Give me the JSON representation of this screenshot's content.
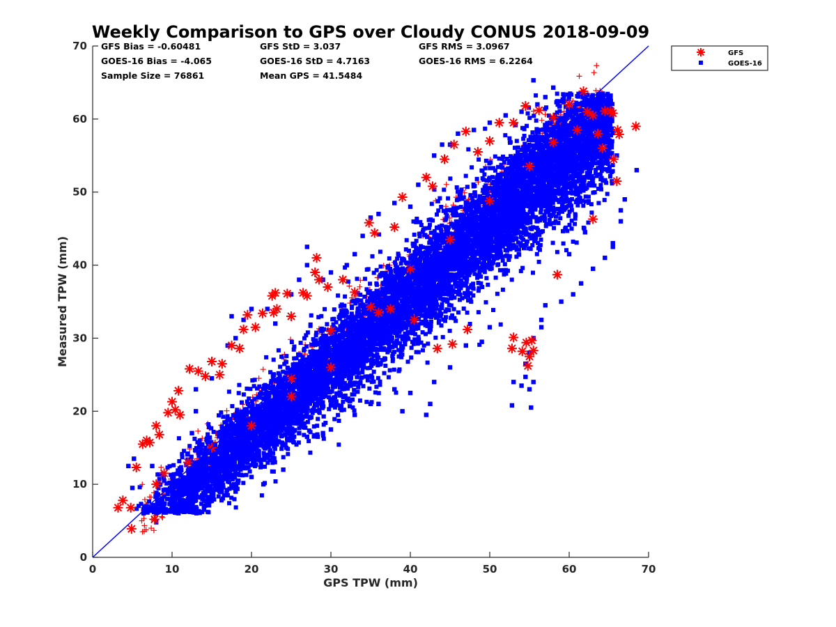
{
  "chart_data": {
    "type": "scatter",
    "title": "Weekly Comparison to GPS over Cloudy CONUS 2018-09-09",
    "xlabel": "GPS TPW (mm)",
    "ylabel": "Measured TPW (mm)",
    "xlim": [
      0,
      70
    ],
    "ylim": [
      0,
      70
    ],
    "xticks": [
      0,
      10,
      20,
      30,
      40,
      50,
      60,
      70
    ],
    "yticks": [
      0,
      10,
      20,
      30,
      40,
      50,
      60,
      70
    ],
    "grid": false,
    "legend_position": "outside-top-right",
    "reference_line": {
      "from": [
        0,
        0
      ],
      "to": [
        70,
        70
      ],
      "color": "#0000ff"
    },
    "stats": [
      [
        "GFS Bias = -0.60481",
        "GFS StD = 3.037",
        "GFS RMS = 3.0967"
      ],
      [
        "GOES-16 Bias = -4.065",
        "GOES-16 StD = 4.7163",
        "GOES-16 RMS = 6.2264"
      ],
      [
        "Sample Size = 76861",
        "Mean GPS = 41.5484",
        ""
      ]
    ],
    "series": [
      {
        "name": "GOES-16",
        "marker": "square",
        "color": "#0000ff",
        "cloud_slope": 0.96,
        "cloud_offset": -2.5,
        "cloud_spread": 2.8,
        "points": [
          [
            5,
            9.5
          ],
          [
            4.5,
            12.5
          ],
          [
            5.2,
            13.5
          ],
          [
            7.5,
            12.5
          ],
          [
            8,
            4.8
          ],
          [
            9,
            10.5
          ],
          [
            12.5,
            17
          ],
          [
            13,
            20
          ],
          [
            13,
            23
          ],
          [
            15,
            24.5
          ],
          [
            17,
            29
          ],
          [
            18,
            30
          ],
          [
            17.5,
            33
          ],
          [
            19,
            32.5
          ],
          [
            20,
            34
          ],
          [
            22,
            34
          ],
          [
            23,
            32
          ],
          [
            25,
            36
          ],
          [
            26,
            38
          ],
          [
            27,
            40
          ],
          [
            27,
            42.5
          ],
          [
            29,
            38
          ],
          [
            30,
            39
          ],
          [
            32,
            40
          ],
          [
            33,
            41.5
          ],
          [
            34,
            44
          ],
          [
            35,
            46.5
          ],
          [
            36,
            47
          ],
          [
            38,
            48.5
          ],
          [
            40,
            48
          ],
          [
            41,
            51
          ],
          [
            42,
            52
          ],
          [
            43,
            55
          ],
          [
            44,
            56.5
          ],
          [
            45,
            56.5
          ],
          [
            46,
            58
          ],
          [
            48,
            58.5
          ],
          [
            50,
            59.5
          ],
          [
            52,
            60.5
          ],
          [
            54,
            61
          ],
          [
            56,
            62
          ],
          [
            57,
            63
          ],
          [
            55.5,
            65.3
          ],
          [
            58,
            64.3
          ],
          [
            60,
            63
          ],
          [
            62,
            62.5
          ],
          [
            63,
            61.5
          ],
          [
            64,
            57
          ],
          [
            66,
            55
          ],
          [
            67,
            49
          ],
          [
            68.5,
            53
          ],
          [
            66.5,
            47.5
          ],
          [
            66.5,
            46
          ],
          [
            65.5,
            43
          ],
          [
            65.5,
            42.5
          ],
          [
            64.5,
            41
          ],
          [
            63,
            39.5
          ],
          [
            61.5,
            37.5
          ],
          [
            60.5,
            36
          ],
          [
            59,
            35
          ],
          [
            57,
            34.5
          ],
          [
            56.5,
            32.5
          ],
          [
            56.5,
            31.5
          ],
          [
            55.5,
            30
          ],
          [
            55,
            28
          ],
          [
            54.5,
            26.5
          ],
          [
            55.5,
            24
          ],
          [
            54,
            23.5
          ],
          [
            53,
            24
          ],
          [
            55,
            23
          ],
          [
            55.2,
            20.5
          ],
          [
            52.8,
            20.8
          ],
          [
            54.5,
            24.7
          ],
          [
            50,
            31.5
          ],
          [
            49,
            29.5
          ],
          [
            47,
            29
          ],
          [
            45,
            26
          ],
          [
            43,
            24
          ],
          [
            42.5,
            21
          ],
          [
            42,
            19.5
          ],
          [
            40,
            22.5
          ],
          [
            39,
            20
          ],
          [
            38,
            23
          ],
          [
            36,
            21
          ],
          [
            35,
            21
          ],
          [
            33,
            19.5
          ],
          [
            30,
            17.5
          ],
          [
            29,
            17
          ],
          [
            27,
            16.5
          ],
          [
            26,
            17
          ],
          [
            25,
            16
          ],
          [
            24,
            12
          ],
          [
            21.5,
            10
          ],
          [
            20,
            11
          ],
          [
            18,
            9
          ],
          [
            17,
            8.5
          ],
          [
            15,
            10.5
          ],
          [
            11,
            6.5
          ],
          [
            10,
            7.5
          ],
          [
            31,
            29
          ],
          [
            28,
            21
          ],
          [
            47.5,
            39
          ],
          [
            42.5,
            36
          ],
          [
            52.5,
            45
          ],
          [
            61,
            57
          ],
          [
            60,
            41.5
          ],
          [
            62,
            44.5
          ]
        ]
      },
      {
        "name": "GFS",
        "marker": "asterisk",
        "color": "#ff0000",
        "points": [
          [
            3.2,
            6.8
          ],
          [
            3.8,
            7.8
          ],
          [
            4.8,
            6.8
          ],
          [
            4.9,
            3.9
          ],
          [
            5.5,
            12.3
          ],
          [
            6.3,
            15.5
          ],
          [
            6.8,
            16
          ],
          [
            7.2,
            15.7
          ],
          [
            7.8,
            5.2
          ],
          [
            8,
            18
          ],
          [
            8.4,
            16.8
          ],
          [
            9.5,
            19.8
          ],
          [
            10,
            21.3
          ],
          [
            10.4,
            20.2
          ],
          [
            10.8,
            22.8
          ],
          [
            11,
            19.5
          ],
          [
            12.2,
            25.8
          ],
          [
            13.3,
            25.5
          ],
          [
            14.2,
            24.8
          ],
          [
            15,
            26.8
          ],
          [
            16,
            25
          ],
          [
            16.3,
            26.5
          ],
          [
            17.5,
            29
          ],
          [
            18.5,
            28.6
          ],
          [
            19,
            31.2
          ],
          [
            19.5,
            33.2
          ],
          [
            20.5,
            31.5
          ],
          [
            21.4,
            33.4
          ],
          [
            22.8,
            33.5
          ],
          [
            23.2,
            34
          ],
          [
            22.6,
            35.8
          ],
          [
            23,
            36.2
          ],
          [
            24.5,
            36.1
          ],
          [
            25,
            33
          ],
          [
            26.5,
            36.2
          ],
          [
            27,
            35.8
          ],
          [
            28,
            39
          ],
          [
            28.2,
            41
          ],
          [
            28.5,
            38
          ],
          [
            29.6,
            37
          ],
          [
            31.5,
            38
          ],
          [
            33,
            36.3
          ],
          [
            34.8,
            45.8
          ],
          [
            35.5,
            44.4
          ],
          [
            38,
            45.2
          ],
          [
            39,
            49.3
          ],
          [
            42,
            52
          ],
          [
            42.8,
            50.8
          ],
          [
            44.3,
            54.5
          ],
          [
            45.5,
            56.5
          ],
          [
            47,
            58.3
          ],
          [
            48.5,
            55.5
          ],
          [
            50,
            57
          ],
          [
            51.2,
            59.5
          ],
          [
            53,
            59.5
          ],
          [
            54.5,
            61.8
          ],
          [
            56.2,
            61.2
          ],
          [
            58,
            60.2
          ],
          [
            60,
            62
          ],
          [
            61.8,
            63.8
          ],
          [
            62.3,
            61
          ],
          [
            63,
            60.5
          ],
          [
            63.6,
            58
          ],
          [
            64.2,
            56
          ],
          [
            64.5,
            61.1
          ],
          [
            65.2,
            61.1
          ],
          [
            65.5,
            60.8
          ],
          [
            66.3,
            57.9
          ],
          [
            66.1,
            58.5
          ],
          [
            68.4,
            59
          ],
          [
            65.6,
            54.5
          ],
          [
            66,
            51.5
          ],
          [
            63,
            46.3
          ],
          [
            58.5,
            38.7
          ],
          [
            53,
            30.1
          ],
          [
            52.8,
            28.6
          ],
          [
            54.1,
            28.2
          ],
          [
            54.6,
            29.4
          ],
          [
            55,
            27.5
          ],
          [
            55.3,
            29.7
          ],
          [
            55.5,
            28.3
          ],
          [
            54.8,
            26.2
          ],
          [
            47.2,
            31.2
          ],
          [
            45.3,
            29.2
          ],
          [
            43.4,
            28.6
          ],
          [
            40.5,
            32.5
          ],
          [
            37.5,
            34
          ],
          [
            36,
            33.5
          ],
          [
            30,
            31
          ],
          [
            30,
            26
          ],
          [
            25,
            22
          ],
          [
            20,
            18
          ],
          [
            15,
            15
          ],
          [
            12,
            13
          ],
          [
            9,
            11.5
          ],
          [
            8,
            10
          ],
          [
            40,
            39.5
          ],
          [
            45,
            43.5
          ],
          [
            50,
            48.8
          ],
          [
            55,
            53.5
          ],
          [
            58,
            56.8
          ],
          [
            61,
            58.5
          ],
          [
            35,
            34.3
          ],
          [
            25,
            24.5
          ]
        ]
      }
    ]
  }
}
